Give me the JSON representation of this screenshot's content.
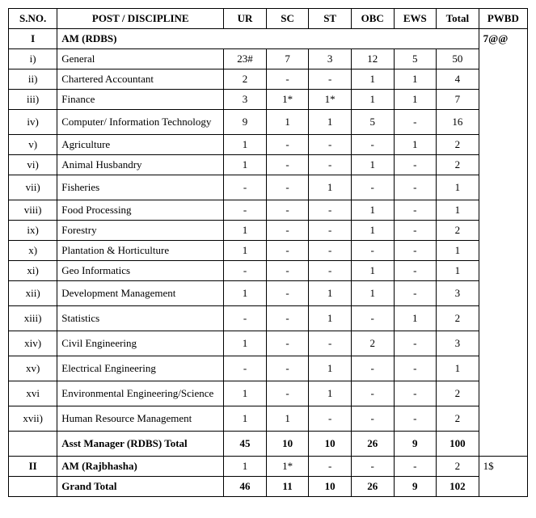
{
  "columns": {
    "sno": "S.NO.",
    "post": "POST / DISCIPLINE",
    "ur": "UR",
    "sc": "SC",
    "st": "ST",
    "obc": "OBC",
    "ews": "EWS",
    "total": "Total",
    "pwbd": "PWBD"
  },
  "section1": {
    "sno": "I",
    "title": "AM (RDBS)",
    "pwbd": "7@@"
  },
  "rows1": [
    {
      "sno": "i)",
      "post": "General",
      "ur": "23#",
      "sc": "7",
      "st": "3",
      "obc": "12",
      "ews": "5",
      "total": "50",
      "tall": false
    },
    {
      "sno": "ii)",
      "post": "Chartered Accountant",
      "ur": "2",
      "sc": "-",
      "st": "-",
      "obc": "1",
      "ews": "1",
      "total": "4",
      "tall": false
    },
    {
      "sno": "iii)",
      "post": "Finance",
      "ur": "3",
      "sc": "1*",
      "st": "1*",
      "obc": "1",
      "ews": "1",
      "total": "7",
      "tall": false
    },
    {
      "sno": "iv)",
      "post": "Computer/ Information Technology",
      "ur": "9",
      "sc": "1",
      "st": "1",
      "obc": "5",
      "ews": "-",
      "total": "16",
      "tall": true
    },
    {
      "sno": "v)",
      "post": "Agriculture",
      "ur": "1",
      "sc": "-",
      "st": "-",
      "obc": "-",
      "ews": "1",
      "total": "2",
      "tall": false
    },
    {
      "sno": "vi)",
      "post": "Animal Husbandry",
      "ur": "1",
      "sc": "-",
      "st": "-",
      "obc": "1",
      "ews": "-",
      "total": "2",
      "tall": false
    },
    {
      "sno": "vii)",
      "post": "Fisheries",
      "ur": "-",
      "sc": "-",
      "st": "1",
      "obc": "-",
      "ews": "-",
      "total": "1",
      "tall": true
    },
    {
      "sno": "viii)",
      "post": "Food Processing",
      "ur": "-",
      "sc": "-",
      "st": "-",
      "obc": "1",
      "ews": "-",
      "total": "1",
      "tall": false
    },
    {
      "sno": "ix)",
      "post": "Forestry",
      "ur": "1",
      "sc": "-",
      "st": "-",
      "obc": "1",
      "ews": "-",
      "total": "2",
      "tall": false
    },
    {
      "sno": "x)",
      "post": "Plantation & Horticulture",
      "ur": "1",
      "sc": "-",
      "st": "-",
      "obc": "-",
      "ews": "-",
      "total": "1",
      "tall": false
    },
    {
      "sno": "xi)",
      "post": "Geo Informatics",
      "ur": "-",
      "sc": "-",
      "st": "-",
      "obc": "1",
      "ews": "-",
      "total": "1",
      "tall": false
    },
    {
      "sno": "xii)",
      "post": "Development Management",
      "ur": "1",
      "sc": "-",
      "st": "1",
      "obc": "1",
      "ews": "-",
      "total": "3",
      "tall": true
    },
    {
      "sno": "xiii)",
      "post": "Statistics",
      "ur": "-",
      "sc": "-",
      "st": "1",
      "obc": "-",
      "ews": "1",
      "total": "2",
      "tall": true
    },
    {
      "sno": "xiv)",
      "post": "Civil Engineering",
      "ur": "1",
      "sc": "-",
      "st": "-",
      "obc": "2",
      "ews": "-",
      "total": "3",
      "tall": true
    },
    {
      "sno": "xv)",
      "post": "Electrical Engineering",
      "ur": "-",
      "sc": "-",
      "st": "1",
      "obc": "-",
      "ews": "-",
      "total": "1",
      "tall": true
    },
    {
      "sno": "xvi",
      "post": "Environmental Engineering/Science",
      "ur": "1",
      "sc": "-",
      "st": "1",
      "obc": "-",
      "ews": "-",
      "total": "2",
      "tall": true
    },
    {
      "sno": "xvii)",
      "post": "Human Resource Management",
      "ur": "1",
      "sc": "1",
      "st": "-",
      "obc": "-",
      "ews": "-",
      "total": "2",
      "tall": true
    }
  ],
  "subtotal1": {
    "post": "Asst Manager (RDBS) Total",
    "ur": "45",
    "sc": "10",
    "st": "10",
    "obc": "26",
    "ews": "9",
    "total": "100"
  },
  "section2": {
    "sno": "II",
    "title": "AM (Rajbhasha)",
    "ur": "1",
    "sc": "1*",
    "st": "-",
    "obc": "-",
    "ews": "-",
    "total": "2",
    "pwbd": "1$"
  },
  "grand": {
    "post": "Grand Total",
    "ur": "46",
    "sc": "11",
    "st": "10",
    "obc": "26",
    "ews": "9",
    "total": "102"
  }
}
